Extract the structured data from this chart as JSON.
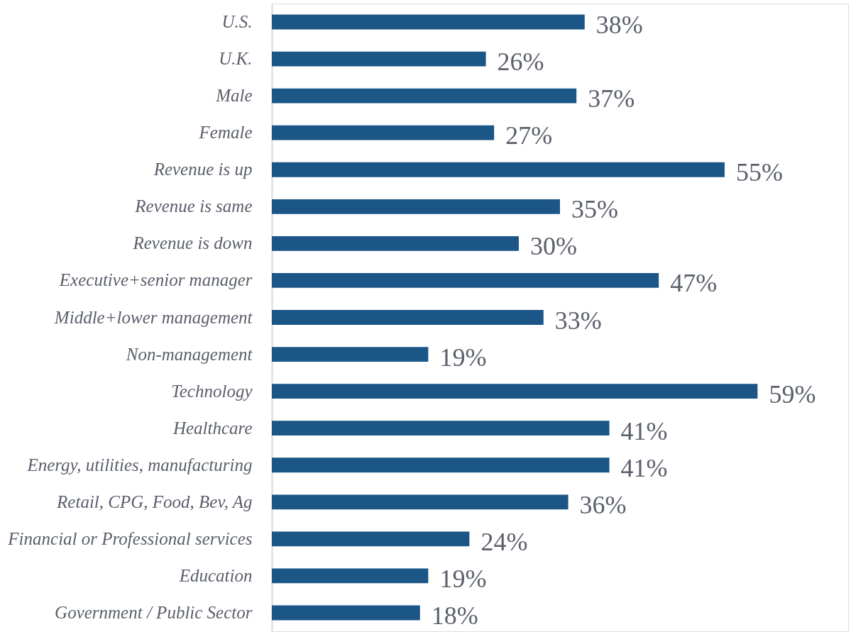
{
  "chart_data": {
    "type": "bar",
    "orientation": "horizontal",
    "categories": [
      "U.S.",
      "U.K.",
      "Male",
      "Female",
      "Revenue is up",
      "Revenue is same",
      "Revenue is down",
      "Executive+senior manager",
      "Middle+lower management",
      "Non-management",
      "Technology",
      "Healthcare",
      "Energy, utilities, manufacturing",
      "Retail, CPG, Food, Bev, Ag",
      "Financial or Professional services",
      "Education",
      "Government / Public Sector"
    ],
    "values": [
      38,
      26,
      37,
      27,
      55,
      35,
      30,
      47,
      33,
      19,
      59,
      41,
      41,
      36,
      24,
      19,
      18
    ],
    "value_labels": [
      "38%",
      "26%",
      "37%",
      "27%",
      "55%",
      "35%",
      "30%",
      "47%",
      "33%",
      "19%",
      "59%",
      "41%",
      "41%",
      "36%",
      "24%",
      "19%",
      "18%"
    ],
    "color": "#1b5686",
    "xlim": [
      0,
      70
    ],
    "tick_labels": "y"
  }
}
